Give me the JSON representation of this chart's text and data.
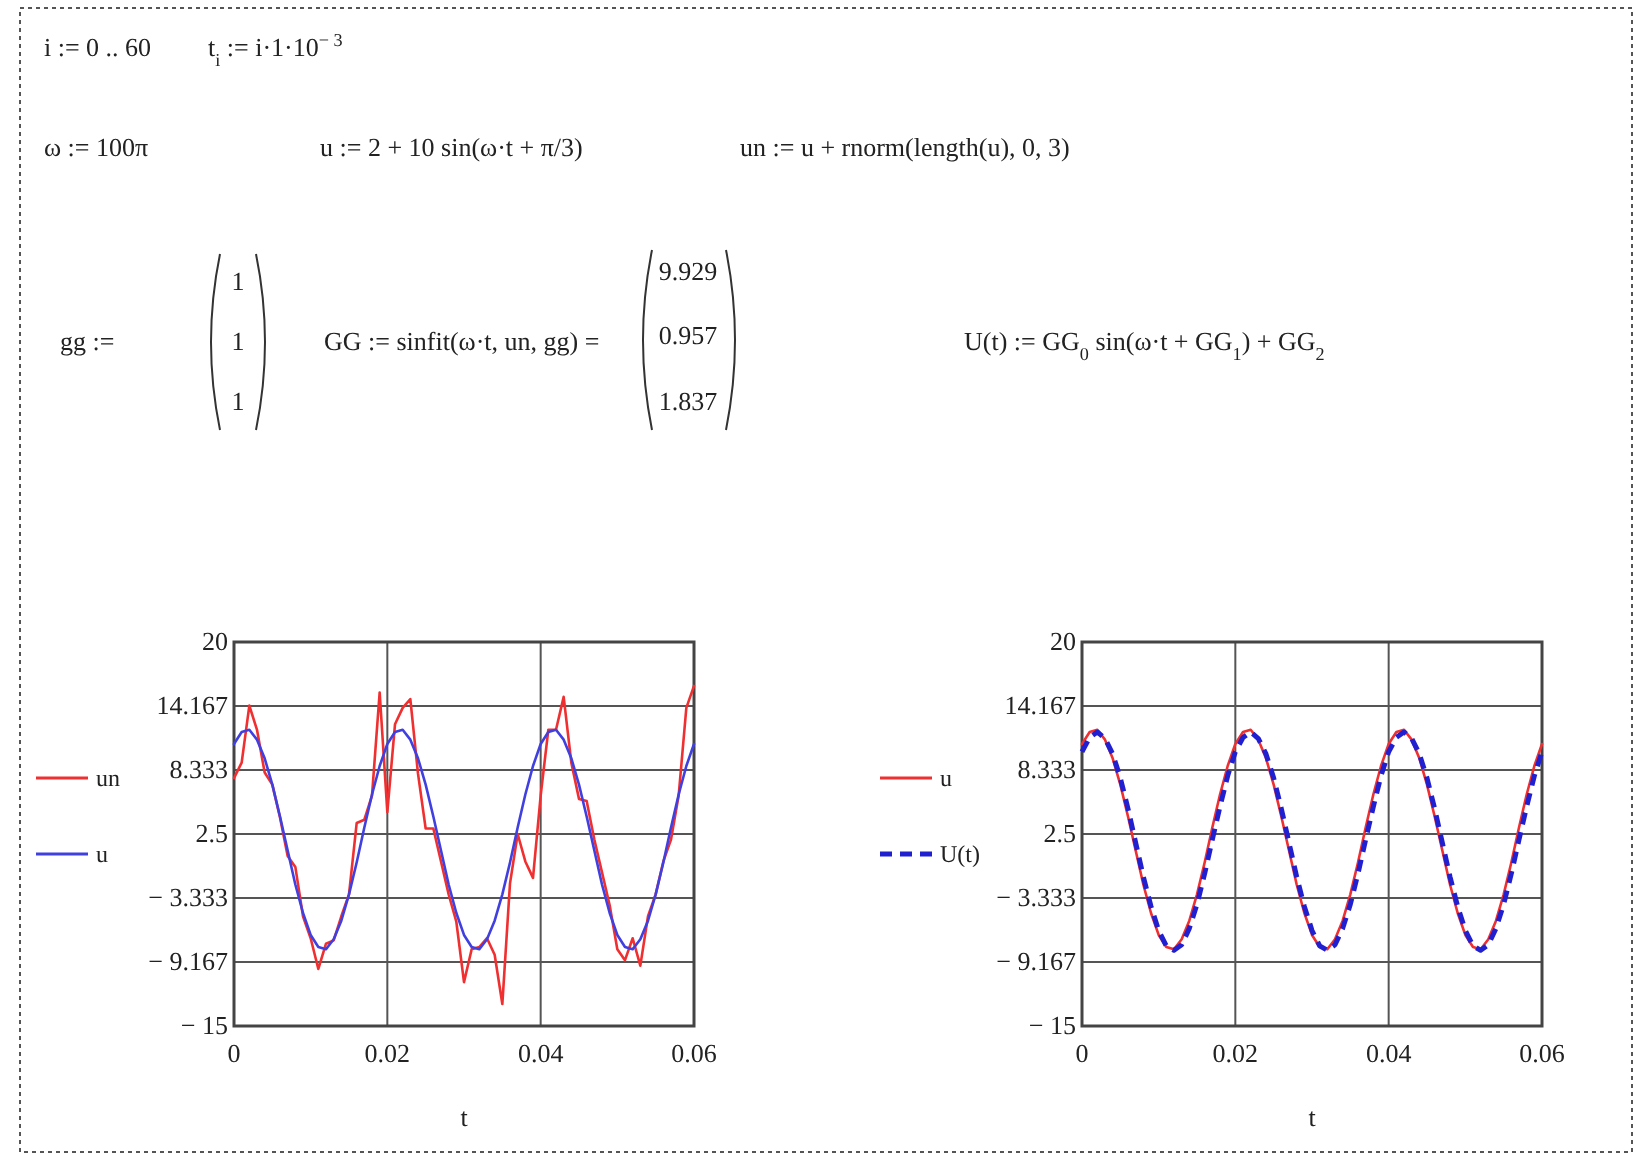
{
  "chart_data": [
    {
      "type": "other",
      "annotations": [
        "i := 0 .. 60",
        "t$_{i}$ := i·1·10$^{− 3}$",
        "ω := 100π",
        "u := 2 + 10 sin(ω·t + π/3)",
        "un := u + rnorm(length(u), 0, 3)",
        "gg :=",
        "1",
        "1",
        "1",
        "GG := sinfit(ω·t, un, gg) =",
        "9.929",
        "0.957",
        "1.837",
        "U(t) := GG$_{0}$ sin(ω·t + GG$_{1}$) + GG$_{2}$"
      ]
    },
    {
      "type": "line",
      "xlabel": "t",
      "x": [
        0,
        0.001,
        0.002,
        0.003,
        0.004,
        0.005,
        0.006,
        0.007,
        0.008,
        0.009,
        0.01,
        0.011,
        0.012,
        0.013,
        0.014,
        0.015,
        0.016,
        0.017,
        0.018,
        0.019,
        0.02,
        0.021,
        0.022,
        0.023,
        0.024,
        0.025,
        0.026,
        0.027,
        0.028,
        0.029,
        0.03,
        0.031,
        0.032,
        0.033,
        0.034,
        0.035,
        0.036,
        0.037,
        0.038,
        0.039,
        0.04,
        0.041,
        0.042,
        0.043,
        0.044,
        0.045,
        0.046,
        0.047,
        0.048,
        0.049,
        0.05,
        0.051,
        0.052,
        0.053,
        0.054,
        0.055,
        0.056,
        0.057,
        0.058,
        0.059,
        0.06
      ],
      "xlim": [
        0,
        0.06
      ],
      "xticks": [
        0,
        0.02,
        0.04,
        0.06
      ],
      "ylim": [
        -15,
        20
      ],
      "yticks": [
        {
          "value": -15,
          "label": "− 15"
        },
        {
          "value": -9.167,
          "label": "− 9.167"
        },
        {
          "value": -3.333,
          "label": "− 3.333"
        },
        2.5,
        8.333,
        14.167,
        20
      ],
      "grid": true,
      "legend": "left",
      "marker": "none",
      "series": [
        {
          "name": "un",
          "color": "#f03030",
          "values": [
            7.6,
            9,
            14.2,
            12,
            8.1,
            7,
            4,
            0.5,
            -0.5,
            -5,
            -7,
            -9.8,
            -7.5,
            -7.2,
            -5,
            -3,
            3.5,
            3.8,
            6,
            15.4,
            4.5,
            12.5,
            14,
            14.8,
            8,
            3,
            3,
            0,
            -3,
            -5.5,
            -11,
            -8,
            -7.8,
            -7,
            -8.5,
            -13,
            -2,
            2.5,
            0,
            -1.5,
            6,
            12,
            12,
            15,
            9,
            5.7,
            5.5,
            2,
            -1,
            -4,
            -8,
            -9,
            -7,
            -9.5,
            -5,
            -3,
            0,
            2,
            6,
            14,
            16
          ]
        },
        {
          "name": "u",
          "color": "#4040e0",
          "values": [
            10.7,
            11.8,
            12,
            11.1,
            9.4,
            7,
            4.1,
            1,
            -2.1,
            -4.7,
            -6.7,
            -7.8,
            -8,
            -7.1,
            -5.4,
            -3,
            -0.1,
            3.1,
            6.1,
            8.7,
            10.7,
            11.8,
            12,
            11.1,
            9.4,
            7,
            4.1,
            1,
            -2.1,
            -4.7,
            -6.7,
            -7.8,
            -8,
            -7.1,
            -5.4,
            -3,
            -0.1,
            3.1,
            6.1,
            8.7,
            10.7,
            11.8,
            12,
            11.1,
            9.4,
            7,
            4.1,
            1,
            -2.1,
            -4.7,
            -6.7,
            -7.8,
            -8,
            -7.1,
            -5.4,
            -3,
            -0.1,
            3.1,
            6.1,
            8.7,
            10.7
          ]
        }
      ]
    },
    {
      "type": "line",
      "xlabel": "t",
      "x": [
        0,
        0.001,
        0.002,
        0.003,
        0.004,
        0.005,
        0.006,
        0.007,
        0.008,
        0.009,
        0.01,
        0.011,
        0.012,
        0.013,
        0.014,
        0.015,
        0.016,
        0.017,
        0.018,
        0.019,
        0.02,
        0.021,
        0.022,
        0.023,
        0.024,
        0.025,
        0.026,
        0.027,
        0.028,
        0.029,
        0.03,
        0.031,
        0.032,
        0.033,
        0.034,
        0.035,
        0.036,
        0.037,
        0.038,
        0.039,
        0.04,
        0.041,
        0.042,
        0.043,
        0.044,
        0.045,
        0.046,
        0.047,
        0.048,
        0.049,
        0.05,
        0.051,
        0.052,
        0.053,
        0.054,
        0.055,
        0.056,
        0.057,
        0.058,
        0.059,
        0.06
      ],
      "xlim": [
        0,
        0.06
      ],
      "xticks": [
        0,
        0.02,
        0.04,
        0.06
      ],
      "ylim": [
        -15,
        20
      ],
      "yticks": [
        {
          "value": -15,
          "label": "− 15"
        },
        {
          "value": -9.167,
          "label": "− 9.167"
        },
        {
          "value": -3.333,
          "label": "− 3.333"
        },
        2.5,
        8.333,
        14.167,
        20
      ],
      "grid": true,
      "legend": "left",
      "marker": "none",
      "series": [
        {
          "name": "u",
          "color": "#f03030",
          "line_style": "solid",
          "values": [
            10.7,
            11.8,
            12,
            11.1,
            9.4,
            7,
            4.1,
            1,
            -2.1,
            -4.7,
            -6.7,
            -7.8,
            -8,
            -7.1,
            -5.4,
            -3,
            -0.1,
            3.1,
            6.1,
            8.7,
            10.7,
            11.8,
            12,
            11.1,
            9.4,
            7,
            4.1,
            1,
            -2.1,
            -4.7,
            -6.7,
            -7.8,
            -8,
            -7.1,
            -5.4,
            -3,
            -0.1,
            3.1,
            6.1,
            8.7,
            10.7,
            11.8,
            12,
            11.1,
            9.4,
            7,
            4.1,
            1,
            -2.1,
            -4.7,
            -6.7,
            -7.8,
            -8,
            -7.1,
            -5.4,
            -3,
            -0.1,
            3.1,
            6.1,
            8.7,
            10.7
          ]
        },
        {
          "name": "U(t)",
          "color": "#2020d0",
          "line_style": "dashed",
          "values": [
            10,
            11.3,
            11.8,
            11.2,
            9.8,
            7.6,
            4.8,
            1.7,
            -1.4,
            -4.1,
            -6.3,
            -7.7,
            -8.1,
            -7.6,
            -6.1,
            -3.9,
            -1.1,
            2,
            5,
            7.8,
            10,
            11.3,
            11.8,
            11.2,
            9.8,
            7.6,
            4.8,
            1.7,
            -1.4,
            -4.1,
            -6.3,
            -7.7,
            -8.1,
            -7.6,
            -6.1,
            -3.9,
            -1.1,
            2,
            5,
            7.8,
            10,
            11.3,
            11.8,
            11.2,
            9.8,
            7.6,
            4.8,
            1.7,
            -1.4,
            -4.1,
            -6.3,
            -7.7,
            -8.1,
            -7.6,
            -6.1,
            -3.9,
            -1.1,
            2,
            5,
            7.8,
            10
          ]
        }
      ]
    }
  ]
}
